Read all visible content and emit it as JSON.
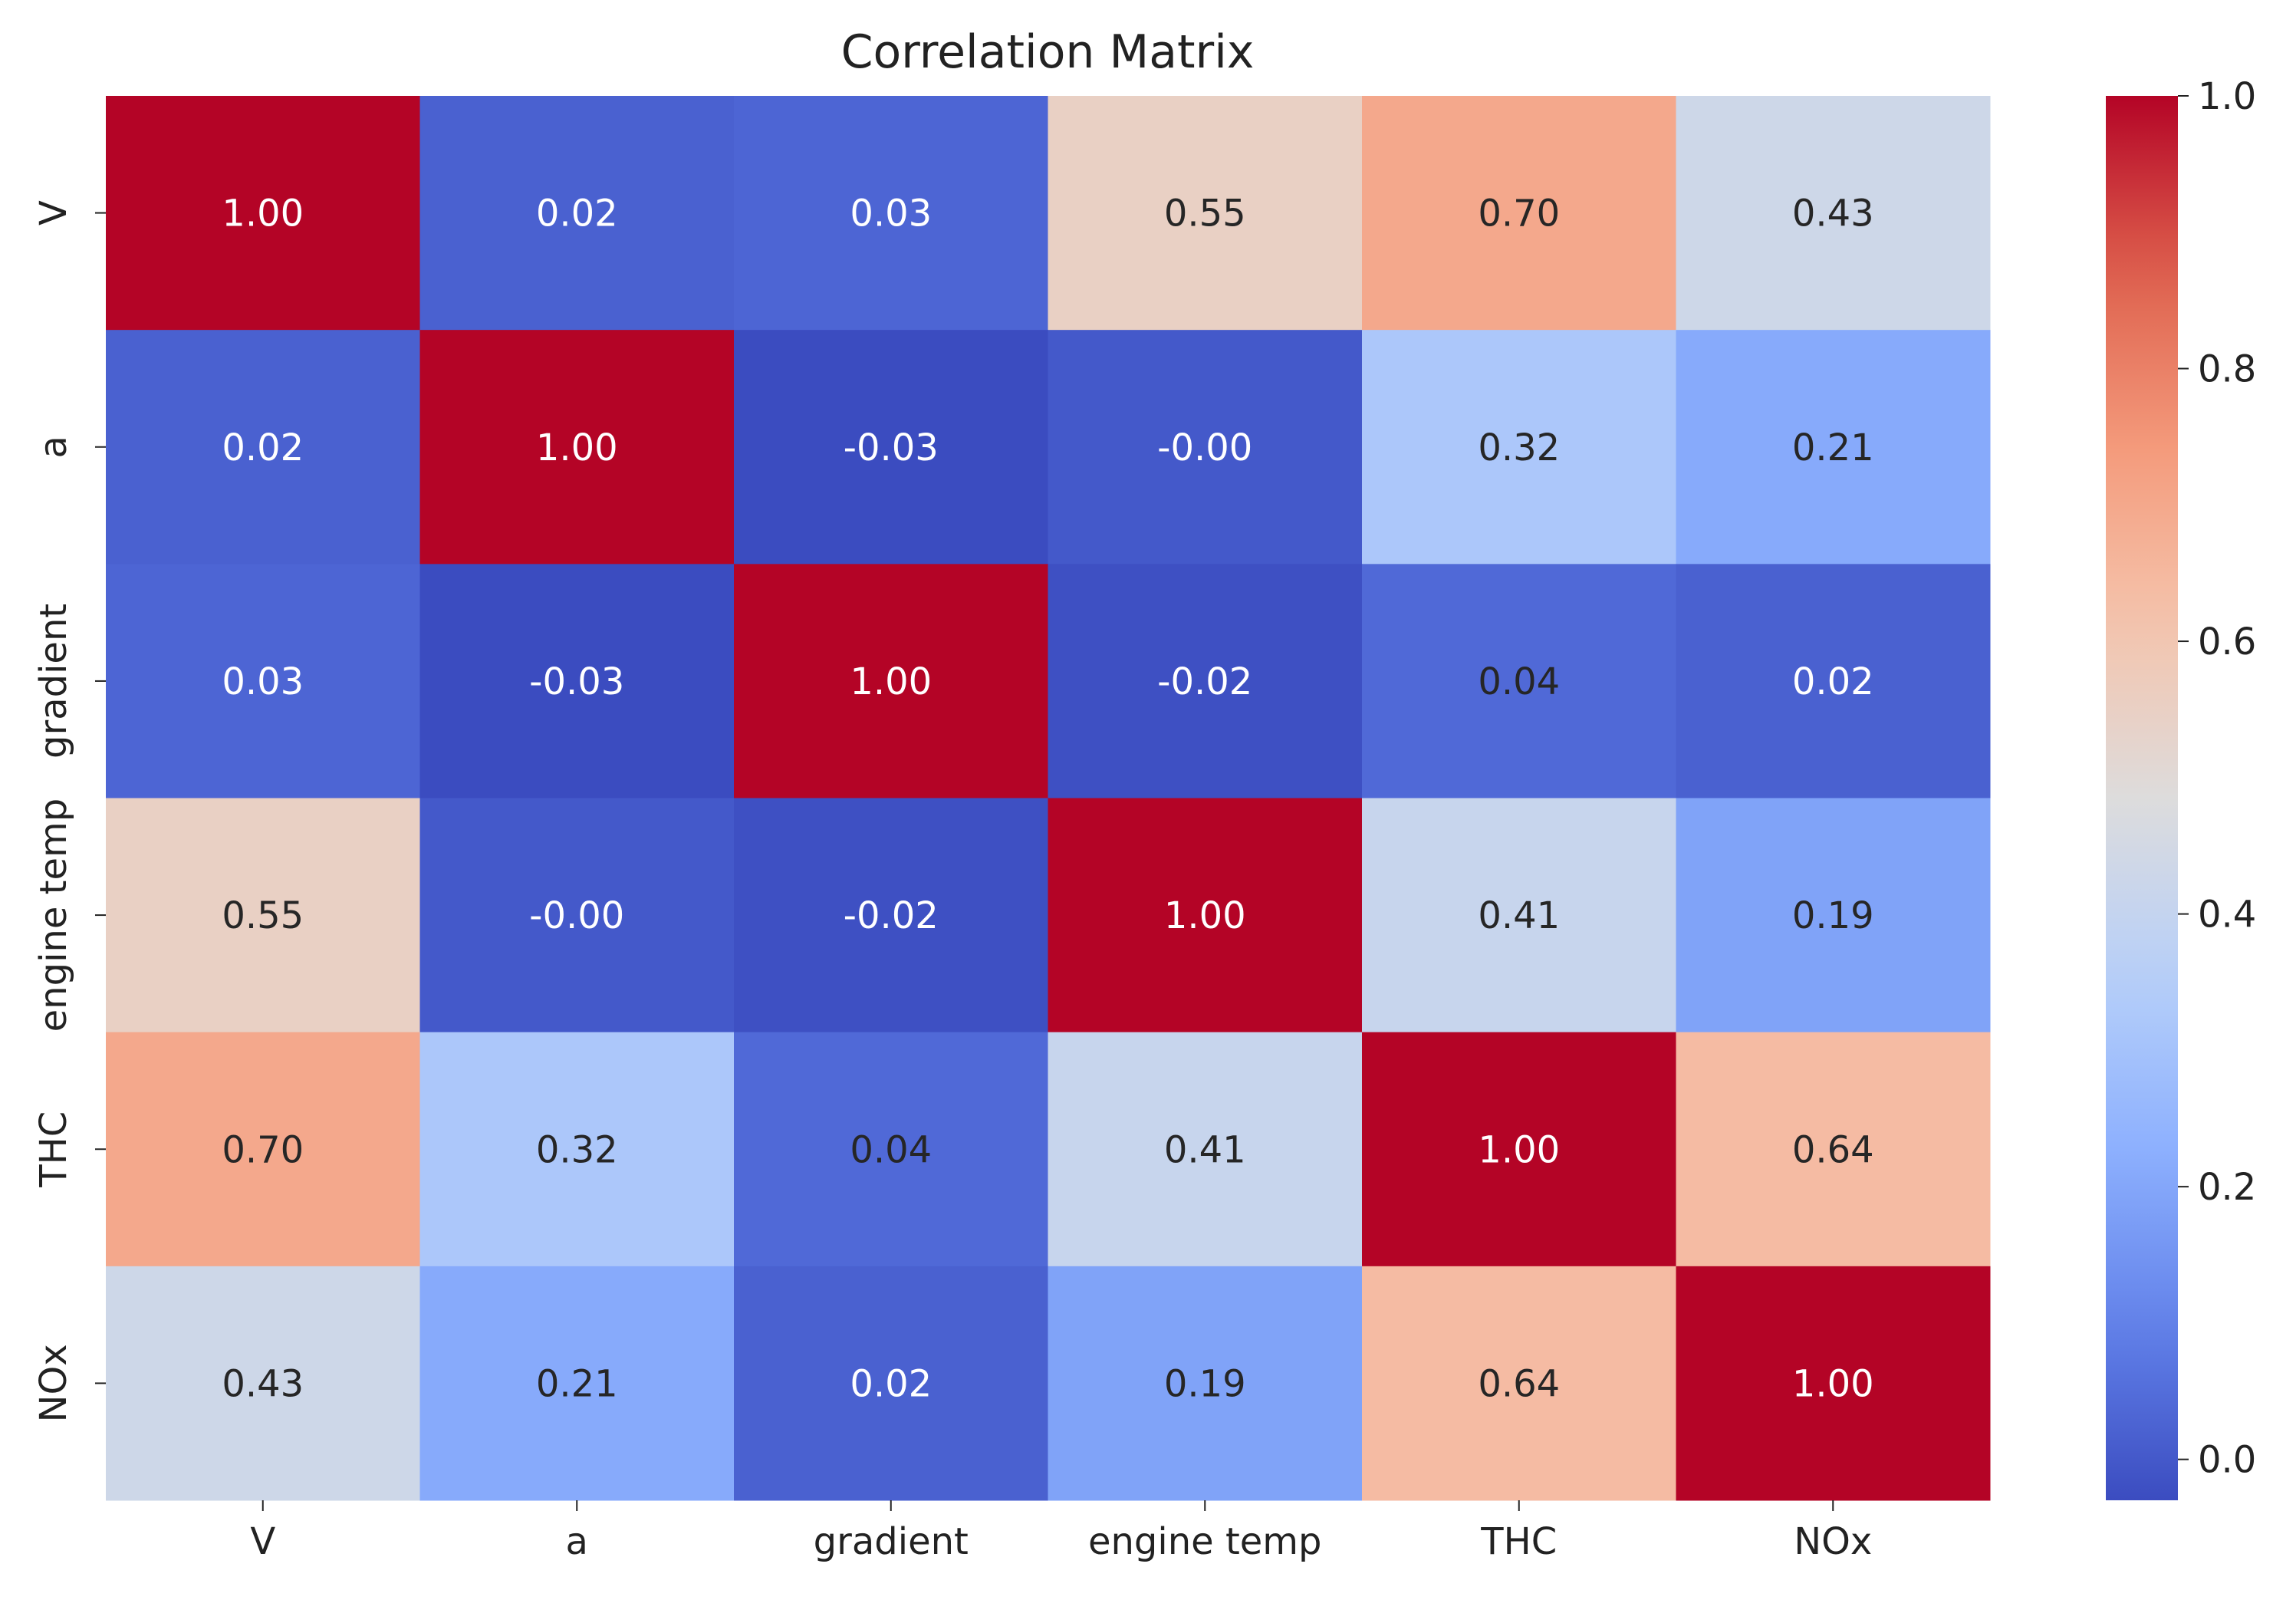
{
  "chart_data": {
    "type": "heatmap",
    "title": "Correlation Matrix",
    "colormap": "coolwarm",
    "x_labels": [
      "V",
      "a",
      "gradient",
      "engine temp",
      "THC",
      "NOx"
    ],
    "y_labels": [
      "V",
      "a",
      "gradient",
      "engine temp",
      "THC",
      "NOx"
    ],
    "values": [
      [
        1.0,
        0.02,
        0.03,
        0.55,
        0.7,
        0.43
      ],
      [
        0.02,
        1.0,
        -0.03,
        -0.0,
        0.32,
        0.21
      ],
      [
        0.03,
        -0.03,
        1.0,
        -0.02,
        0.04,
        0.02
      ],
      [
        0.55,
        -0.0,
        -0.02,
        1.0,
        0.41,
        0.19
      ],
      [
        0.7,
        0.32,
        0.04,
        0.41,
        1.0,
        0.64
      ],
      [
        0.43,
        0.21,
        0.02,
        0.19,
        0.64,
        1.0
      ]
    ],
    "annotations": [
      [
        "1.00",
        "0.02",
        "0.03",
        "0.55",
        "0.70",
        "0.43"
      ],
      [
        "0.02",
        "1.00",
        "-0.03",
        "-0.00",
        "0.32",
        "0.21"
      ],
      [
        "0.03",
        "-0.03",
        "1.00",
        "-0.02",
        "0.04",
        "0.02"
      ],
      [
        "0.55",
        "-0.00",
        "-0.02",
        "1.00",
        "0.41",
        "0.19"
      ],
      [
        "0.70",
        "0.32",
        "0.04",
        "0.41",
        "1.00",
        "0.64"
      ],
      [
        "0.43",
        "0.21",
        "0.02",
        "0.19",
        "0.64",
        "1.00"
      ]
    ],
    "colorbar": {
      "range": [
        -0.03,
        1.0
      ],
      "ticks": [
        0.0,
        0.2,
        0.4,
        0.6,
        0.8,
        1.0
      ],
      "tick_labels": [
        "0.0",
        "0.2",
        "0.4",
        "0.6",
        "0.8",
        "1.0"
      ]
    },
    "colors": {
      "low": "#3b4cc0",
      "mid": "#dddcdc",
      "high": "#b40426"
    }
  }
}
